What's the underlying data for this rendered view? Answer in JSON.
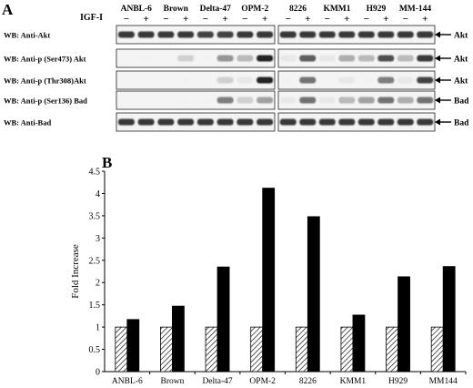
{
  "panel_a": {
    "label": "A",
    "treatment_label": "IGF-I",
    "cell_lines": [
      "ANBL-6",
      "Brown",
      "Delta-47",
      "OPM-2",
      "8226",
      "KMM1",
      "H929",
      "MM-144"
    ],
    "lane_signs": [
      "−",
      "+"
    ],
    "rows": [
      {
        "left_label": "WB: Anti-Akt",
        "right_label": "Akt",
        "intensity_minus": [
          0.85,
          0.85,
          0.8,
          0.85,
          0.85,
          0.85,
          0.85,
          0.85
        ],
        "intensity_plus": [
          0.85,
          0.85,
          0.8,
          0.85,
          0.85,
          0.85,
          0.85,
          0.85
        ]
      },
      {
        "left_label": "WB: Anti-p (Ser473) Akt",
        "right_label": "Akt",
        "intensity_minus": [
          0.0,
          0.0,
          0.05,
          0.3,
          0.1,
          0.1,
          0.3,
          0.3
        ],
        "intensity_plus": [
          0.05,
          0.2,
          0.45,
          0.95,
          0.7,
          0.35,
          0.75,
          0.85
        ]
      },
      {
        "left_label": "WB: Anti-p (Thr308)Akt",
        "right_label": "Akt",
        "intensity_minus": [
          0.0,
          0.0,
          0.0,
          0.1,
          0.05,
          0.0,
          0.05,
          0.1
        ],
        "intensity_plus": [
          0.0,
          0.05,
          0.2,
          0.95,
          0.6,
          0.1,
          0.55,
          0.8
        ]
      },
      {
        "left_label": "WB: Anti-p (Ser136) Bad",
        "right_label": "Bad",
        "intensity_minus": [
          0.0,
          0.0,
          0.05,
          0.2,
          0.1,
          0.1,
          0.4,
          0.35
        ],
        "intensity_plus": [
          0.0,
          0.05,
          0.55,
          0.4,
          0.6,
          0.3,
          0.6,
          0.6
        ]
      },
      {
        "left_label": "WB: Anti-Bad",
        "right_label": "Bad",
        "intensity_minus": [
          0.85,
          0.85,
          0.85,
          0.85,
          0.85,
          0.85,
          0.85,
          0.85
        ],
        "intensity_plus": [
          0.85,
          0.85,
          0.85,
          0.85,
          0.85,
          0.85,
          0.85,
          0.85
        ]
      }
    ]
  },
  "panel_b": {
    "label": "B"
  },
  "chart_data": {
    "type": "bar",
    "title": "",
    "xlabel": "",
    "ylabel": "Fold Increase",
    "categories": [
      "ANBL-6",
      "Brown",
      "Delta-47",
      "OPM-2",
      "8226",
      "KMM1",
      "H929",
      "MM144"
    ],
    "series": [
      {
        "values": [
          1,
          1,
          1,
          1,
          1,
          1,
          1,
          1
        ],
        "fill": "hatched"
      },
      {
        "values": [
          1.17,
          1.47,
          2.35,
          4.12,
          3.48,
          1.27,
          2.13,
          2.36
        ],
        "fill": "#000000"
      }
    ],
    "ylim": [
      0,
      4.5
    ],
    "yticks": [
      "0",
      "0.5",
      "1",
      "1.5",
      "2",
      "2.5",
      "3",
      "3.5",
      "4",
      "4.5"
    ],
    "grid": false,
    "legend": "none"
  }
}
